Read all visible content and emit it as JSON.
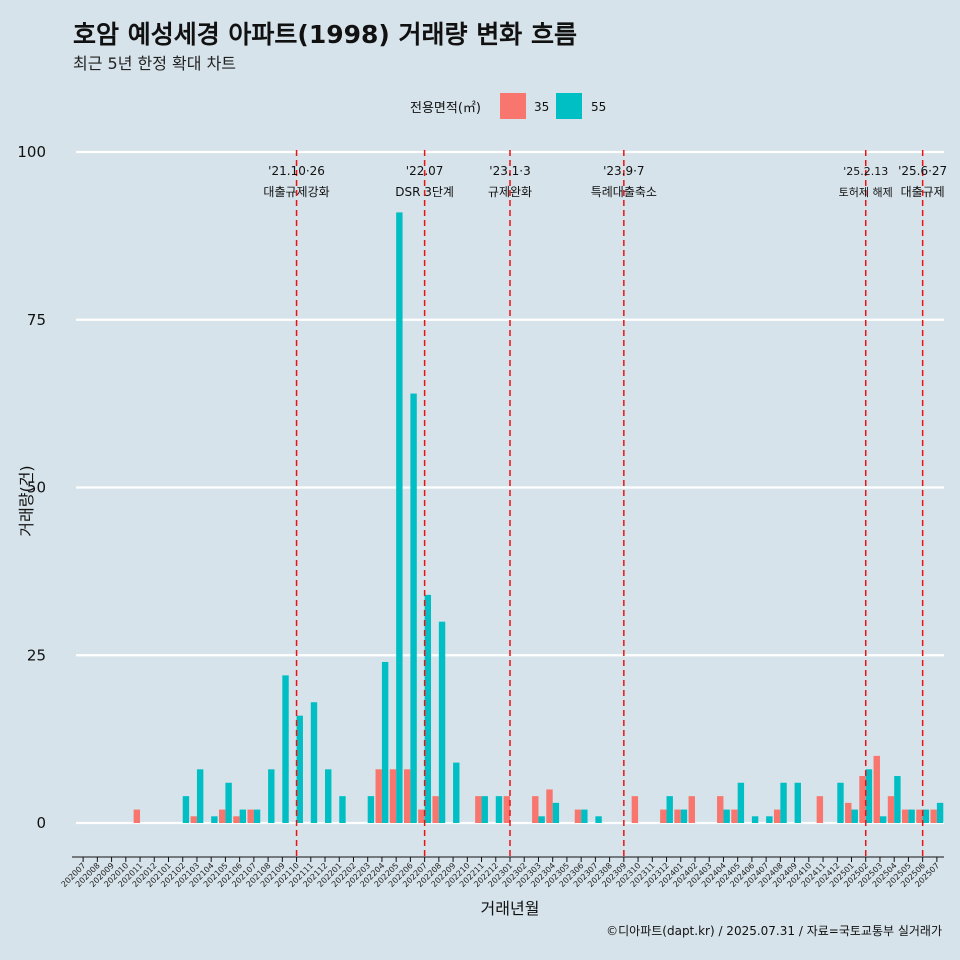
{
  "chart_data": {
    "type": "bar",
    "title": "호암 예성세경 아파트(1998) 거래량 변화 흐름",
    "subtitle": "최근 5년 한정 확대 차트",
    "xlabel": "거래년월",
    "ylabel": "거래량(건)",
    "ylim": [
      0,
      100
    ],
    "yticks": [
      0,
      25,
      50,
      75,
      100
    ],
    "grid": true,
    "legend": {
      "title": "전용면적(㎡)",
      "position": "top"
    },
    "categories": [
      "202007",
      "202008",
      "202009",
      "202010",
      "202011",
      "202012",
      "202101",
      "202102",
      "202103",
      "202104",
      "202105",
      "202106",
      "202107",
      "202108",
      "202109",
      "202110",
      "202111",
      "202112",
      "202201",
      "202202",
      "202203",
      "202204",
      "202205",
      "202206",
      "202207",
      "202208",
      "202209",
      "202210",
      "202211",
      "202212",
      "202301",
      "202302",
      "202303",
      "202304",
      "202305",
      "202306",
      "202307",
      "202308",
      "202309",
      "202310",
      "202311",
      "202312",
      "202401",
      "202402",
      "202403",
      "202404",
      "202405",
      "202406",
      "202407",
      "202408",
      "202409",
      "202410",
      "202411",
      "202412",
      "202501",
      "202502",
      "202503",
      "202504",
      "202505",
      "202506",
      "202507"
    ],
    "series": [
      {
        "name": "35",
        "color": "#f8766d",
        "values": [
          0,
          0,
          0,
          0,
          2,
          0,
          0,
          0,
          1,
          0,
          2,
          1,
          2,
          0,
          0,
          0,
          0,
          0,
          0,
          0,
          0,
          8,
          8,
          8,
          2,
          4,
          0,
          0,
          4,
          0,
          4,
          0,
          4,
          5,
          0,
          2,
          0,
          0,
          0,
          4,
          0,
          2,
          2,
          4,
          0,
          4,
          2,
          0,
          0,
          2,
          0,
          0,
          4,
          0,
          3,
          7,
          10,
          4,
          2,
          2,
          2
        ]
      },
      {
        "name": "55",
        "color": "#00bfc4",
        "values": [
          0,
          0,
          0,
          0,
          0,
          0,
          0,
          4,
          8,
          1,
          6,
          2,
          2,
          8,
          22,
          16,
          18,
          8,
          4,
          0,
          4,
          24,
          91,
          64,
          34,
          30,
          9,
          0,
          4,
          4,
          0,
          0,
          1,
          3,
          0,
          2,
          1,
          0,
          0,
          0,
          0,
          4,
          2,
          0,
          0,
          2,
          6,
          1,
          1,
          6,
          6,
          0,
          0,
          6,
          2,
          8,
          1,
          7,
          2,
          2,
          3
        ]
      }
    ],
    "annotations": [
      {
        "at": "202110",
        "date": "'21.10·26",
        "label": "대출규제강화",
        "small": false
      },
      {
        "at": "202207",
        "date": "'22.07",
        "label": "DSR 3단계",
        "small": false
      },
      {
        "at": "202301",
        "date": "'23.1·3",
        "label": "규제완화",
        "small": false
      },
      {
        "at": "202309",
        "date": "'23.9·7",
        "label": "특례대출축소",
        "small": false
      },
      {
        "at": "202502",
        "date": "'25.2.13",
        "label": "토허제 해제",
        "small": true
      },
      {
        "at": "202506",
        "date": "'25.6·27",
        "label": "대출규제",
        "small": false
      }
    ],
    "caption": "©디아파트(dapt.kr) / 2025.07.31 / 자료=국토교통부 실거래가"
  },
  "colors": {
    "background": "#d6e3ea",
    "grid": "#ffffff",
    "vline": "#ee1111"
  }
}
